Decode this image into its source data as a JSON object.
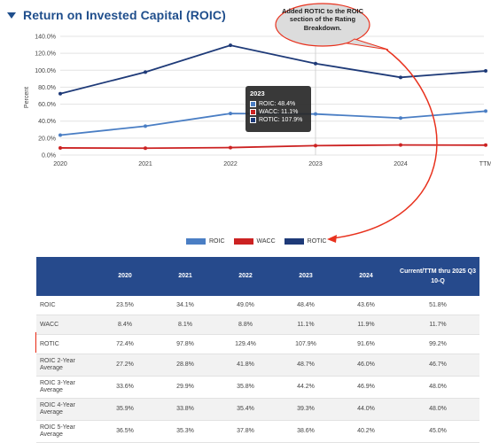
{
  "section": {
    "title": "Return on Invested Capital (ROIC)"
  },
  "chart_data": {
    "type": "line",
    "x": [
      "2020",
      "2021",
      "2022",
      "2023",
      "2024",
      "TTM"
    ],
    "series": [
      {
        "name": "ROIC",
        "values": [
          23.5,
          34.1,
          49.0,
          48.4,
          43.6,
          51.8
        ],
        "color": "#4a7ec4"
      },
      {
        "name": "WACC",
        "values": [
          8.4,
          8.1,
          8.8,
          11.1,
          11.9,
          11.7
        ],
        "color": "#cc2222"
      },
      {
        "name": "ROTIC",
        "values": [
          72.4,
          97.8,
          129.4,
          107.9,
          91.6,
          99.2
        ],
        "color": "#1e3a78"
      }
    ],
    "ylabel": "Percent",
    "ylim": [
      0,
      140
    ],
    "yticks": [
      "0.0%",
      "20.0%",
      "40.0%",
      "60.0%",
      "80.0%",
      "100.0%",
      "120.0%",
      "140.0%"
    ],
    "grid": true,
    "legend": "bottom-center"
  },
  "tooltip": {
    "year": "2023",
    "rows": [
      {
        "label": "ROIC: 48.4%",
        "color": "#4a7ec4"
      },
      {
        "label": "WACC: 11.1%",
        "color": "#cc2222"
      },
      {
        "label": "ROTIC: 107.9%",
        "color": "#1e3a78"
      }
    ]
  },
  "annotation": {
    "text": "Added ROTIC to the ROIC section of the Rating Breakdown."
  },
  "table": {
    "columns": [
      "",
      "2020",
      "2021",
      "2022",
      "2023",
      "2024",
      "Current/TTM thru 2025 Q3 10-Q"
    ],
    "rows": [
      {
        "label": "ROIC",
        "values": [
          "23.5%",
          "34.1%",
          "49.0%",
          "48.4%",
          "43.6%",
          "51.8%"
        ]
      },
      {
        "label": "WACC",
        "values": [
          "8.4%",
          "8.1%",
          "8.8%",
          "11.1%",
          "11.9%",
          "11.7%"
        ]
      },
      {
        "label": "ROTIC",
        "values": [
          "72.4%",
          "97.8%",
          "129.4%",
          "107.9%",
          "91.6%",
          "99.2%"
        ]
      },
      {
        "label": "ROIC 2-Year Average",
        "values": [
          "27.2%",
          "28.8%",
          "41.8%",
          "48.7%",
          "46.0%",
          "46.7%"
        ]
      },
      {
        "label": "ROIC 3-Year Average",
        "values": [
          "33.6%",
          "29.9%",
          "35.8%",
          "44.2%",
          "46.9%",
          "48.0%"
        ]
      },
      {
        "label": "ROIC 4-Year Average",
        "values": [
          "35.9%",
          "33.8%",
          "35.4%",
          "39.3%",
          "44.0%",
          "48.0%"
        ]
      },
      {
        "label": "ROIC 5-Year Average",
        "values": [
          "36.5%",
          "35.3%",
          "37.8%",
          "38.6%",
          "40.2%",
          "45.0%"
        ]
      }
    ],
    "highlight_row": "ROTIC",
    "highlight_color": "#e8321e"
  }
}
